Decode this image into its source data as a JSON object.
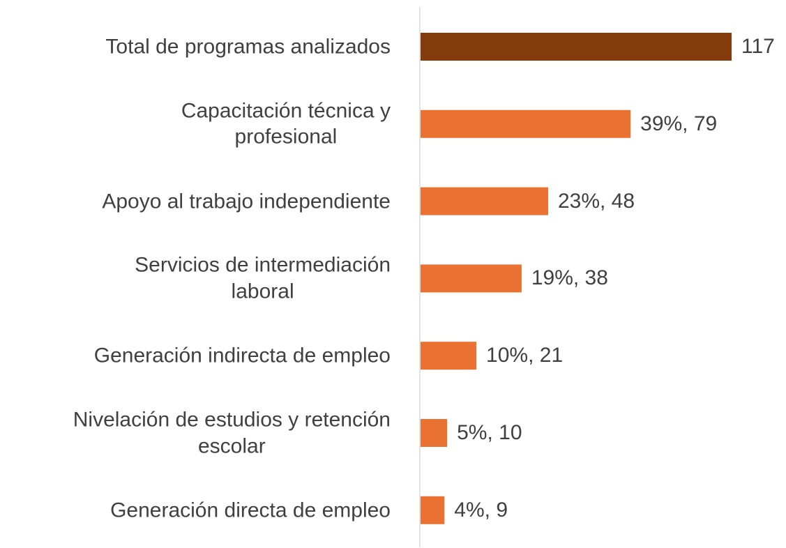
{
  "chart_data": {
    "type": "bar",
    "orientation": "horizontal",
    "categories": [
      "Total de programas analizados",
      "Capacitación técnica y\nprofesional",
      "Apoyo al trabajo independiente",
      "Servicios de intermediación\nlaboral",
      "Generación indirecta de empleo",
      "Nivelación de estudios y retención\nescolar",
      "Generación directa de empleo"
    ],
    "values": [
      117,
      79,
      48,
      38,
      21,
      10,
      9
    ],
    "value_labels": [
      "117",
      "39%, 79",
      "23%, 48",
      "19%, 38",
      "10%, 21",
      "5%, 10",
      "4%, 9"
    ],
    "colors": [
      "#843c0c",
      "#e97132",
      "#e97132",
      "#e97132",
      "#e97132",
      "#e97132",
      "#e97132"
    ]
  }
}
